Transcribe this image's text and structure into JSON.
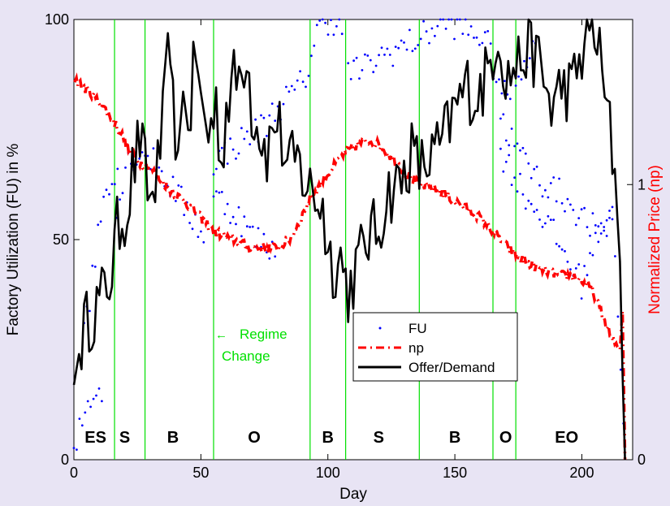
{
  "chart_data": {
    "type": "line",
    "xlabel": "Day",
    "ylabel": "Factory Utilization (FU) in %",
    "ylabel_right": "Normalized Price (np)",
    "xlim": [
      0,
      220
    ],
    "ylim": [
      0,
      100
    ],
    "ylim_right": [
      0,
      1.6
    ],
    "x_ticks": [
      "0",
      "50",
      "100",
      "150",
      "200"
    ],
    "y_ticks": [
      "0",
      "50",
      "100"
    ],
    "y_ticks_right": [
      "0",
      "1"
    ],
    "grid": false,
    "legend": {
      "placement": "lower-center",
      "entries": [
        {
          "label": "FU",
          "style": "dots",
          "color": "#0000ff"
        },
        {
          "label": "np",
          "style": "dash-dot",
          "color": "#ff0000"
        },
        {
          "label": "Offer/Demand",
          "style": "solid",
          "color": "#000000"
        }
      ]
    },
    "regime_changes": [
      16,
      28,
      55,
      93,
      107,
      136,
      165,
      174
    ],
    "regime_change_annotation": {
      "line1": "Regime",
      "line2": "Change",
      "color": "#00e000"
    },
    "regime_labels": [
      {
        "day": 8.5,
        "label": "ES"
      },
      {
        "day": 20,
        "label": "S"
      },
      {
        "day": 39,
        "label": "B"
      },
      {
        "day": 71,
        "label": "O"
      },
      {
        "day": 100,
        "label": "B"
      },
      {
        "day": 120,
        "label": "S"
      },
      {
        "day": 150,
        "label": "B"
      },
      {
        "day": 170,
        "label": "O"
      },
      {
        "day": 194,
        "label": "EO"
      }
    ],
    "series": [
      {
        "name": "Offer/Demand",
        "axis": "left",
        "color": "#000000",
        "keypoints": [
          [
            0,
            17
          ],
          [
            2,
            24
          ],
          [
            4,
            30
          ],
          [
            8,
            34
          ],
          [
            12,
            38
          ],
          [
            15,
            43
          ],
          [
            17,
            52
          ],
          [
            19,
            55
          ],
          [
            21,
            57
          ],
          [
            23,
            65
          ],
          [
            26,
            73
          ],
          [
            28,
            66
          ],
          [
            30,
            58
          ],
          [
            33,
            66
          ],
          [
            35,
            76
          ],
          [
            37,
            90
          ],
          [
            38,
            97
          ],
          [
            40,
            62
          ],
          [
            42,
            83
          ],
          [
            44,
            78
          ],
          [
            46,
            80
          ],
          [
            48,
            94
          ],
          [
            50,
            80
          ],
          [
            53,
            74
          ],
          [
            55,
            78
          ],
          [
            56,
            81
          ],
          [
            58,
            67
          ],
          [
            60,
            80
          ],
          [
            63,
            86
          ],
          [
            66,
            88
          ],
          [
            68,
            94
          ],
          [
            70,
            80
          ],
          [
            73,
            75
          ],
          [
            76,
            70
          ],
          [
            80,
            78
          ],
          [
            84,
            66
          ],
          [
            88,
            68
          ],
          [
            91,
            63
          ],
          [
            95,
            60
          ],
          [
            98,
            57
          ],
          [
            100,
            48
          ],
          [
            102,
            44
          ],
          [
            105,
            46
          ],
          [
            108,
            38
          ],
          [
            112,
            45
          ],
          [
            116,
            51
          ],
          [
            120,
            52
          ],
          [
            123,
            60
          ],
          [
            126,
            62
          ],
          [
            129,
            63
          ],
          [
            133,
            70
          ],
          [
            136,
            66
          ],
          [
            140,
            68
          ],
          [
            145,
            72
          ],
          [
            149,
            78
          ],
          [
            152,
            82
          ],
          [
            155,
            85
          ],
          [
            158,
            82
          ],
          [
            161,
            85
          ],
          [
            164,
            90
          ],
          [
            166,
            96
          ],
          [
            168,
            96
          ],
          [
            170,
            86
          ],
          [
            172,
            88
          ],
          [
            175,
            90
          ],
          [
            178,
            93
          ],
          [
            182,
            92
          ],
          [
            186,
            84
          ],
          [
            188,
            80
          ],
          [
            192,
            85
          ],
          [
            196,
            84
          ],
          [
            200,
            92
          ],
          [
            203,
            98
          ],
          [
            206,
            96
          ],
          [
            209,
            82
          ],
          [
            211,
            75
          ],
          [
            213,
            65
          ],
          [
            215,
            45
          ],
          [
            216,
            20
          ],
          [
            217,
            0
          ]
        ]
      },
      {
        "name": "np",
        "axis": "right",
        "color": "#ff0000",
        "keypoints": [
          [
            0,
            1.39
          ],
          [
            3,
            1.36
          ],
          [
            7,
            1.33
          ],
          [
            11,
            1.29
          ],
          [
            15,
            1.24
          ],
          [
            19,
            1.18
          ],
          [
            22,
            1.12
          ],
          [
            26,
            1.08
          ],
          [
            30,
            1.06
          ],
          [
            34,
            1.02
          ],
          [
            38,
            0.98
          ],
          [
            42,
            0.95
          ],
          [
            47,
            0.91
          ],
          [
            51,
            0.87
          ],
          [
            55,
            0.83
          ],
          [
            60,
            0.81
          ],
          [
            65,
            0.79
          ],
          [
            70,
            0.77
          ],
          [
            75,
            0.77
          ],
          [
            80,
            0.77
          ],
          [
            85,
            0.8
          ],
          [
            89,
            0.87
          ],
          [
            93,
            0.95
          ],
          [
            97,
            1.0
          ],
          [
            101,
            1.05
          ],
          [
            105,
            1.1
          ],
          [
            109,
            1.13
          ],
          [
            113,
            1.15
          ],
          [
            117,
            1.16
          ],
          [
            121,
            1.14
          ],
          [
            125,
            1.1
          ],
          [
            129,
            1.06
          ],
          [
            132,
            1.03
          ],
          [
            136,
            1.0
          ],
          [
            140,
            0.99
          ],
          [
            145,
            0.97
          ],
          [
            150,
            0.94
          ],
          [
            155,
            0.91
          ],
          [
            160,
            0.88
          ],
          [
            164,
            0.84
          ],
          [
            168,
            0.8
          ],
          [
            172,
            0.76
          ],
          [
            176,
            0.73
          ],
          [
            180,
            0.71
          ],
          [
            184,
            0.69
          ],
          [
            188,
            0.68
          ],
          [
            192,
            0.67
          ],
          [
            196,
            0.67
          ],
          [
            200,
            0.65
          ],
          [
            204,
            0.62
          ],
          [
            207,
            0.55
          ],
          [
            210,
            0.48
          ],
          [
            213,
            0.42
          ],
          [
            215,
            0.4
          ],
          [
            216,
            0.54
          ],
          [
            217,
            0.0
          ]
        ]
      }
    ],
    "fu_clusters": [
      [
        [
          0,
          0
        ],
        [
          2,
          6
        ],
        [
          5,
          12
        ],
        [
          8,
          16
        ],
        [
          11,
          16
        ]
      ],
      [
        [
          4,
          32
        ],
        [
          6,
          36
        ],
        [
          8,
          44
        ],
        [
          10,
          54
        ],
        [
          12,
          60
        ],
        [
          14,
          63
        ],
        [
          16,
          66
        ],
        [
          18,
          67
        ]
      ],
      [
        [
          17,
          55
        ],
        [
          20,
          67
        ],
        [
          24,
          69
        ],
        [
          28,
          70
        ],
        [
          32,
          67
        ],
        [
          36,
          64
        ],
        [
          40,
          61
        ],
        [
          44,
          57
        ],
        [
          48,
          54
        ],
        [
          52,
          50
        ]
      ],
      [
        [
          55,
          60
        ],
        [
          60,
          58
        ],
        [
          65,
          55
        ],
        [
          70,
          51
        ],
        [
          75,
          49
        ],
        [
          80,
          47
        ]
      ],
      [
        [
          55,
          68
        ],
        [
          60,
          70
        ],
        [
          65,
          72
        ],
        [
          70,
          74
        ],
        [
          75,
          76
        ],
        [
          80,
          80
        ],
        [
          84,
          82
        ],
        [
          88,
          84
        ],
        [
          92,
          88
        ],
        [
          95,
          96
        ],
        [
          98,
          100
        ],
        [
          102,
          100
        ],
        [
          106,
          97
        ]
      ],
      [
        [
          108,
          88
        ],
        [
          115,
          89
        ],
        [
          122,
          92
        ],
        [
          130,
          94
        ],
        [
          137,
          96
        ],
        [
          144,
          99
        ],
        [
          150,
          99
        ],
        [
          156,
          97
        ],
        [
          162,
          96
        ],
        [
          166,
          88
        ],
        [
          170,
          82
        ],
        [
          174,
          86
        ],
        [
          178,
          92
        ],
        [
          182,
          94
        ]
      ],
      [
        [
          168,
          70
        ],
        [
          172,
          66
        ],
        [
          176,
          62
        ],
        [
          180,
          58
        ],
        [
          184,
          56
        ],
        [
          188,
          52
        ],
        [
          192,
          48
        ],
        [
          196,
          44
        ],
        [
          200,
          40
        ],
        [
          204,
          48
        ],
        [
          208,
          54
        ],
        [
          212,
          58
        ]
      ],
      [
        [
          168,
          78
        ],
        [
          172,
          73
        ],
        [
          176,
          69
        ],
        [
          180,
          66
        ],
        [
          184,
          63
        ],
        [
          188,
          62
        ],
        [
          192,
          60
        ],
        [
          196,
          58
        ],
        [
          200,
          55
        ],
        [
          204,
          53
        ],
        [
          208,
          50
        ],
        [
          212,
          56
        ],
        [
          215,
          25
        ],
        [
          217,
          0
        ]
      ]
    ]
  }
}
